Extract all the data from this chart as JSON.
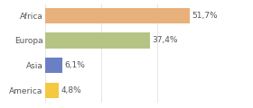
{
  "categories": [
    "America",
    "Asia",
    "Europa",
    "Africa"
  ],
  "values": [
    4.8,
    6.1,
    37.4,
    51.7
  ],
  "labels": [
    "4,8%",
    "6,1%",
    "37,4%",
    "51,7%"
  ],
  "colors": [
    "#f5c842",
    "#6b7fc4",
    "#b5c485",
    "#e8b07a"
  ],
  "xlim": [
    0,
    58
  ],
  "bar_height": 0.62,
  "background_color": "#ffffff",
  "text_color": "#555555",
  "label_fontsize": 6.5,
  "tick_fontsize": 6.5
}
